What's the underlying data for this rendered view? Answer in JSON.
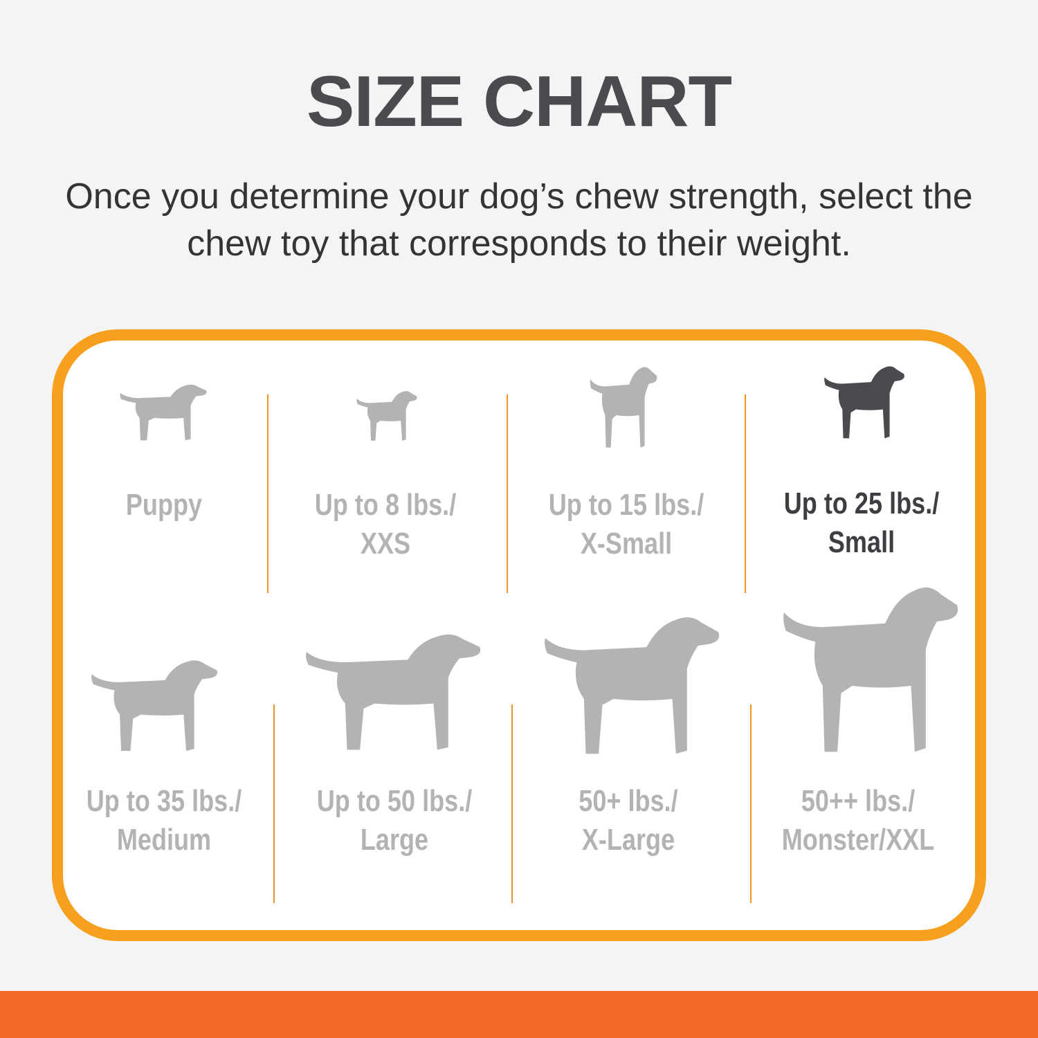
{
  "header": {
    "title": "SIZE CHART",
    "subtitle_line1": "Once you determine your dog’s chew strength, select the",
    "subtitle_line2": "chew toy that corresponds to their weight."
  },
  "colors": {
    "border": "#f7a01f",
    "band": "#f26b26",
    "inactive": "#b3b3b3",
    "active": "#4a4b4f"
  },
  "sizes": [
    {
      "line1": "Puppy",
      "line2": "",
      "icon": "puppy-silhouette-icon",
      "selected": false
    },
    {
      "line1": "Up to 8 lbs./",
      "line2": "XXS",
      "icon": "chihuahua-silhouette-icon",
      "selected": false
    },
    {
      "line1": "Up to 15 lbs./",
      "line2": "X-Small",
      "icon": "toy-terrier-silhouette-icon",
      "selected": false
    },
    {
      "line1": "Up to 25 lbs./",
      "line2": "Small",
      "icon": "terrier-silhouette-icon",
      "selected": true
    },
    {
      "line1": "Up to 35 lbs./",
      "line2": "Medium",
      "icon": "beagle-silhouette-icon",
      "selected": false
    },
    {
      "line1": "Up to 50 lbs./",
      "line2": "Large",
      "icon": "labrador-silhouette-icon",
      "selected": false
    },
    {
      "line1": "50+ lbs./",
      "line2": "X-Large",
      "icon": "shepherd-silhouette-icon",
      "selected": false
    },
    {
      "line1": "50++ lbs./",
      "line2": "Monster/XXL",
      "icon": "great-dane-silhouette-icon",
      "selected": false
    }
  ]
}
